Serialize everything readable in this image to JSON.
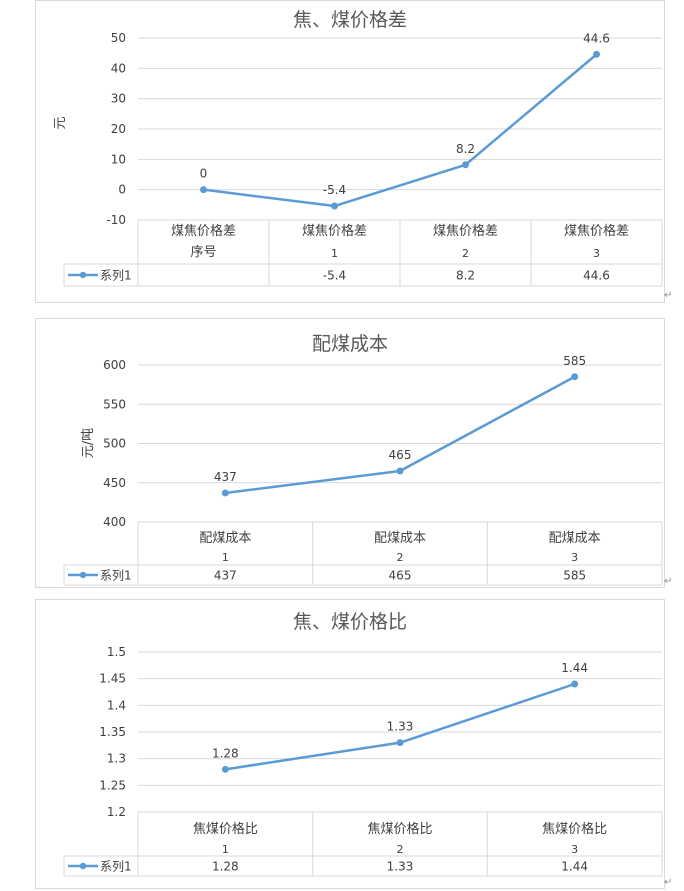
{
  "para_mark": "↵",
  "colors": {
    "series": "#5b9bd5",
    "grid": "#d9d9d9",
    "text": "#404040",
    "title": "#595959"
  },
  "charts": [
    {
      "chart_data": {
        "type": "line",
        "title": "焦、煤价格差",
        "ylabel": "元",
        "ylim": [
          -10,
          50
        ],
        "yticks": [
          50,
          40,
          30,
          20,
          10,
          0,
          -10
        ],
        "categories": [
          {
            "name": "煤焦价格差序号",
            "number": ""
          },
          {
            "name": "煤焦价格差",
            "number": "1"
          },
          {
            "name": "煤焦价格差",
            "number": "2"
          },
          {
            "name": "煤焦价格差",
            "number": "3"
          }
        ],
        "series": [
          {
            "name": "系列1",
            "values": [
              0,
              -5.4,
              8.2,
              44.6
            ],
            "labels": [
              "0",
              "-5.4",
              "8.2",
              "44.6"
            ],
            "table_values": [
              "",
              "-5.4",
              "8.2",
              "44.6"
            ]
          }
        ],
        "grid": true,
        "legend": "data-table"
      }
    },
    {
      "chart_data": {
        "type": "line",
        "title": "配煤成本",
        "ylabel": "元/吨",
        "ylim": [
          400,
          600
        ],
        "yticks": [
          600,
          550,
          500,
          450,
          400
        ],
        "categories": [
          {
            "name": "配煤成本",
            "number": "1"
          },
          {
            "name": "配煤成本",
            "number": "2"
          },
          {
            "name": "配煤成本",
            "number": "3"
          }
        ],
        "series": [
          {
            "name": "系列1",
            "values": [
              437,
              465,
              585
            ],
            "labels": [
              "437",
              "465",
              "585"
            ],
            "table_values": [
              "437",
              "465",
              "585"
            ]
          }
        ],
        "grid": true,
        "legend": "data-table"
      }
    },
    {
      "chart_data": {
        "type": "line",
        "title": "焦、煤价格比",
        "ylabel": "",
        "ylim": [
          1.2,
          1.5
        ],
        "yticks": [
          "1.5",
          "1.45",
          "1.4",
          "1.35",
          "1.3",
          "1.25",
          "1.2"
        ],
        "categories": [
          {
            "name": "焦煤价格比",
            "number": "1"
          },
          {
            "name": "焦煤价格比",
            "number": "2"
          },
          {
            "name": "焦煤价格比",
            "number": "3"
          }
        ],
        "series": [
          {
            "name": "系列1",
            "values": [
              1.28,
              1.33,
              1.44
            ],
            "labels": [
              "1.28",
              "1.33",
              "1.44"
            ],
            "table_values": [
              "1.28",
              "1.33",
              "1.44"
            ]
          }
        ],
        "grid": true,
        "legend": "data-table"
      }
    }
  ]
}
